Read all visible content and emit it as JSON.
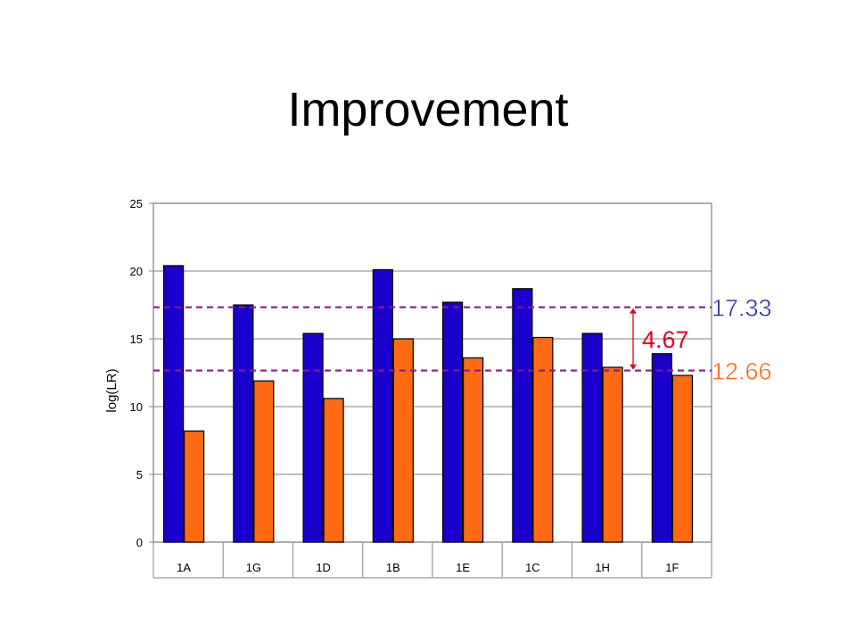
{
  "slide": {
    "title": "Improvement"
  },
  "chart_data": {
    "type": "bar",
    "title": "",
    "xlabel": "",
    "ylabel": "log(LR)",
    "ylim": [
      0,
      25
    ],
    "yticks": [
      0,
      5,
      10,
      15,
      20,
      25
    ],
    "grid": true,
    "categories": [
      "1A",
      "1G",
      "1D",
      "1B",
      "1E",
      "1C",
      "1H",
      "1F"
    ],
    "series": [
      {
        "color": "#1a00cc",
        "values": [
          20.4,
          17.5,
          15.4,
          20.1,
          17.7,
          18.7,
          15.4,
          13.9
        ]
      },
      {
        "color": "#ff6a13",
        "values": [
          8.2,
          11.9,
          10.6,
          15.0,
          13.6,
          15.1,
          12.9,
          12.3
        ]
      }
    ],
    "reference_lines": [
      {
        "value": 17.33,
        "label": "17.33",
        "color": "#3333aa",
        "line_color": "#8b1a8b"
      },
      {
        "value": 12.66,
        "label": "12.66",
        "color": "#ff6a13",
        "line_color": "#8b1a8b"
      }
    ],
    "difference": {
      "label": "4.67",
      "color": "#e8001c",
      "from": 12.66,
      "to": 17.33
    }
  }
}
